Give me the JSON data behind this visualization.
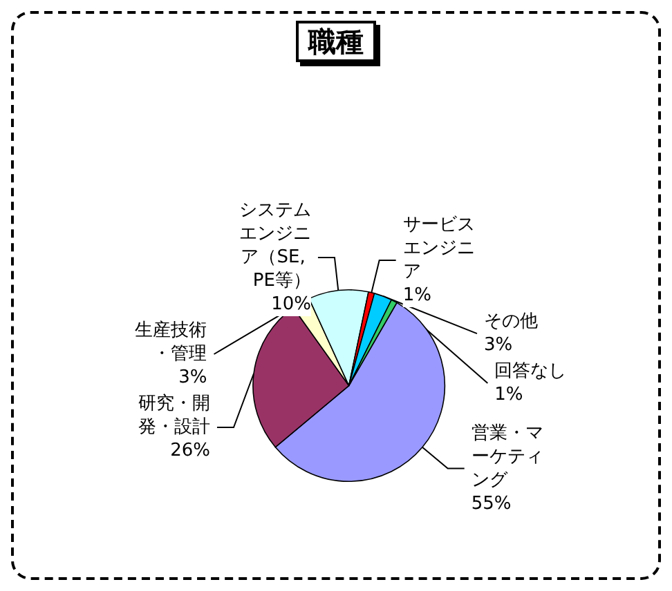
{
  "chart_data": {
    "type": "pie",
    "title": "職種",
    "categories": [
      "営業・マーケティング",
      "研究・開発・設計",
      "生産技術・管理",
      "システムエンジニア（SE, PE等）",
      "サービスエンジニア",
      "その他",
      "回答なし"
    ],
    "values": [
      55,
      26,
      3,
      10,
      1,
      3,
      1
    ],
    "value_labels": [
      "55%",
      "26%",
      "3%",
      "10%",
      "1%",
      "3%",
      "1%"
    ],
    "colors": [
      "#9999ff",
      "#993366",
      "#ffffcc",
      "#ccffff",
      "#ff0000",
      "#00ccff",
      "#33cc66"
    ],
    "legend": false
  }
}
